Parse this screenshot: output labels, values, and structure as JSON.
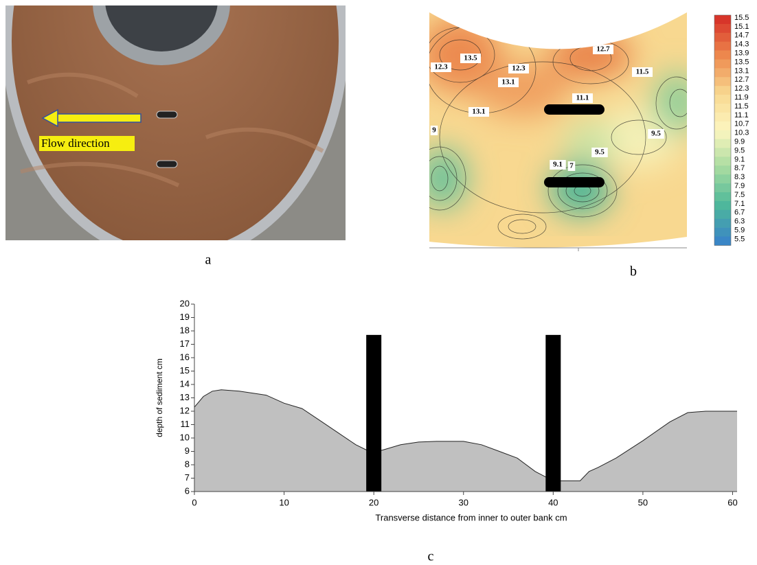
{
  "photo": {
    "label": "a",
    "annotation": "Flow direction"
  },
  "contour_map": {
    "label": "b",
    "colorbar": {
      "ticks": [
        15.5,
        15.1,
        14.7,
        14.3,
        13.9,
        13.5,
        13.1,
        12.7,
        12.3,
        11.9,
        11.5,
        11.1,
        10.7,
        10.3,
        9.9,
        9.5,
        9.1,
        8.7,
        8.3,
        7.9,
        7.5,
        7.1,
        6.7,
        6.3,
        5.9,
        5.5
      ],
      "colors": [
        "#d7352a",
        "#ee8a4e",
        "#f8d890",
        "#fdf6c0",
        "#a9dca0",
        "#4fb99a",
        "#3a86c6"
      ]
    },
    "contour_labels": [
      "13.5",
      "12.7",
      "12.3",
      "12.3",
      "13.1",
      "11.5",
      "11.1",
      "13.1",
      "9.5",
      "9.5",
      "9.1",
      "7",
      "9"
    ]
  },
  "chart_data": {
    "type": "area",
    "label": "c",
    "y_label": "depth of sediment cm",
    "x_label": "Transverse distance from inner to outer bank cm",
    "x": [
      0,
      1,
      2,
      3,
      5,
      8,
      10,
      12,
      14,
      16,
      18,
      19.5,
      20,
      21,
      23,
      25,
      27,
      30,
      32,
      34,
      36,
      38,
      40,
      42,
      43,
      44,
      45,
      47,
      50,
      53,
      55,
      57,
      60.5
    ],
    "values": [
      12.3,
      13.1,
      13.5,
      13.6,
      13.5,
      13.2,
      12.6,
      12.2,
      11.3,
      10.4,
      9.5,
      9.0,
      8.95,
      9.1,
      9.5,
      9.7,
      9.75,
      9.75,
      9.5,
      9.0,
      8.5,
      7.5,
      6.8,
      6.8,
      6.8,
      7.5,
      7.8,
      8.5,
      9.8,
      11.2,
      11.9,
      12.0,
      12.0
    ],
    "color": "#c0c0c0",
    "piers": [
      {
        "x": 20,
        "height": 17.7
      },
      {
        "x": 40,
        "height": 17.7
      }
    ],
    "pier_color": "#000000",
    "xlim": [
      0,
      60.5
    ],
    "ylim": [
      6,
      20
    ],
    "xticks": [
      0,
      10,
      20,
      30,
      40,
      50,
      60
    ],
    "yticks": [
      6,
      7,
      8,
      9,
      10,
      11,
      12,
      13,
      14,
      15,
      16,
      17,
      18,
      19,
      20
    ],
    "grid": false
  }
}
